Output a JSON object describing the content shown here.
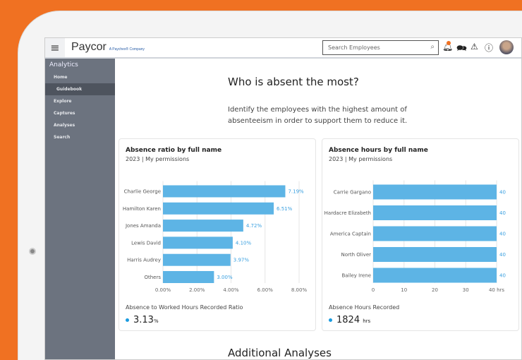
{
  "header": {
    "logo": "Paycor",
    "logo_tagline": "A Paychex® Company",
    "search_placeholder": "Search Employees",
    "notification_count": "1"
  },
  "sidebar": {
    "title": "Analytics",
    "items": [
      {
        "label": "Home"
      },
      {
        "label": "Guidebook",
        "active": true
      },
      {
        "label": "Explore"
      },
      {
        "label": "Captures"
      },
      {
        "label": "Analyses"
      },
      {
        "label": "Search"
      }
    ]
  },
  "main": {
    "title": "Who is absent the most?",
    "description": "Identify the employees with the highest amount of absenteeism in order to support them to reduce it.",
    "additional_title": "Additional Analyses"
  },
  "cards": [
    {
      "title": "Absence ratio by full name",
      "subtitle": "2023 | My permissions",
      "metric_label": "Absence to Worked Hours Recorded Ratio",
      "metric_value": "3.13",
      "metric_unit": "%"
    },
    {
      "title": "Absence hours by full name",
      "subtitle": "2023 | My permissions",
      "metric_label": "Absence Hours Recorded",
      "metric_value": "1824",
      "metric_unit": "hrs"
    }
  ],
  "chart_data": [
    {
      "type": "bar",
      "orientation": "horizontal",
      "categories": [
        "Charlie George",
        "Hamilton Karen",
        "Jones Amanda",
        "Lewis David",
        "Harris Audrey",
        "Others"
      ],
      "values": [
        7.19,
        6.51,
        4.72,
        4.1,
        3.97,
        3.0
      ],
      "data_labels": [
        "7.19%",
        "6.51%",
        "4.72%",
        "4.10%",
        "3.97%",
        "3.00%"
      ],
      "xlim": [
        0,
        8
      ],
      "ticks": [
        "0.00%",
        "2.00%",
        "4.00%",
        "6.00%",
        "8.00%"
      ],
      "grid": true,
      "color": "#5db4e5"
    },
    {
      "type": "bar",
      "orientation": "horizontal",
      "categories": [
        "Carrie Gargano",
        "Hardacre Elizabeth",
        "America Captain",
        "North Oliver",
        "Bailey Irene"
      ],
      "values": [
        40,
        40,
        40,
        40,
        40
      ],
      "data_labels": [
        "40",
        "40",
        "40",
        "40",
        "40"
      ],
      "xlim": [
        0,
        40
      ],
      "ticks": [
        "0",
        "10",
        "20",
        "30",
        "40 hrs"
      ],
      "grid": true,
      "color": "#5db4e5"
    }
  ]
}
